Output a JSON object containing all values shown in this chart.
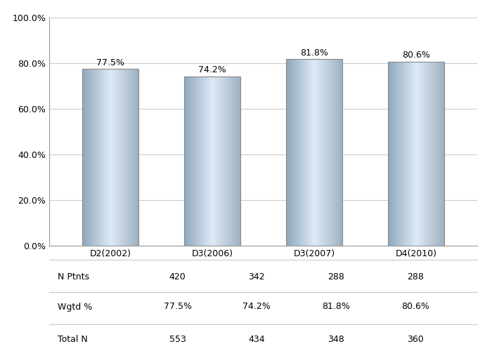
{
  "categories": [
    "D2(2002)",
    "D3(2006)",
    "D3(2007)",
    "D4(2010)"
  ],
  "values": [
    77.5,
    74.2,
    81.8,
    80.6
  ],
  "bar_labels": [
    "77.5%",
    "74.2%",
    "81.8%",
    "80.6%"
  ],
  "ylim": [
    0,
    100
  ],
  "yticks": [
    0,
    20,
    40,
    60,
    80,
    100
  ],
  "ytick_labels": [
    "0.0%",
    "20.0%",
    "40.0%",
    "60.0%",
    "80.0%",
    "100.0%"
  ],
  "table_rows": {
    "N Ptnts": [
      "420",
      "342",
      "288",
      "288"
    ],
    "Wgtd %": [
      "77.5%",
      "74.2%",
      "81.8%",
      "80.6%"
    ],
    "Total N": [
      "553",
      "434",
      "348",
      "360"
    ]
  },
  "color_left": "#8fa8bc",
  "color_mid": "#ddeaf5",
  "color_right": "#9dafc0",
  "background_color": "#ffffff",
  "plot_bg_color": "#ffffff",
  "grid_color": "#cccccc",
  "label_fontsize": 9,
  "tick_fontsize": 9,
  "table_fontsize": 9,
  "bar_width": 0.55
}
